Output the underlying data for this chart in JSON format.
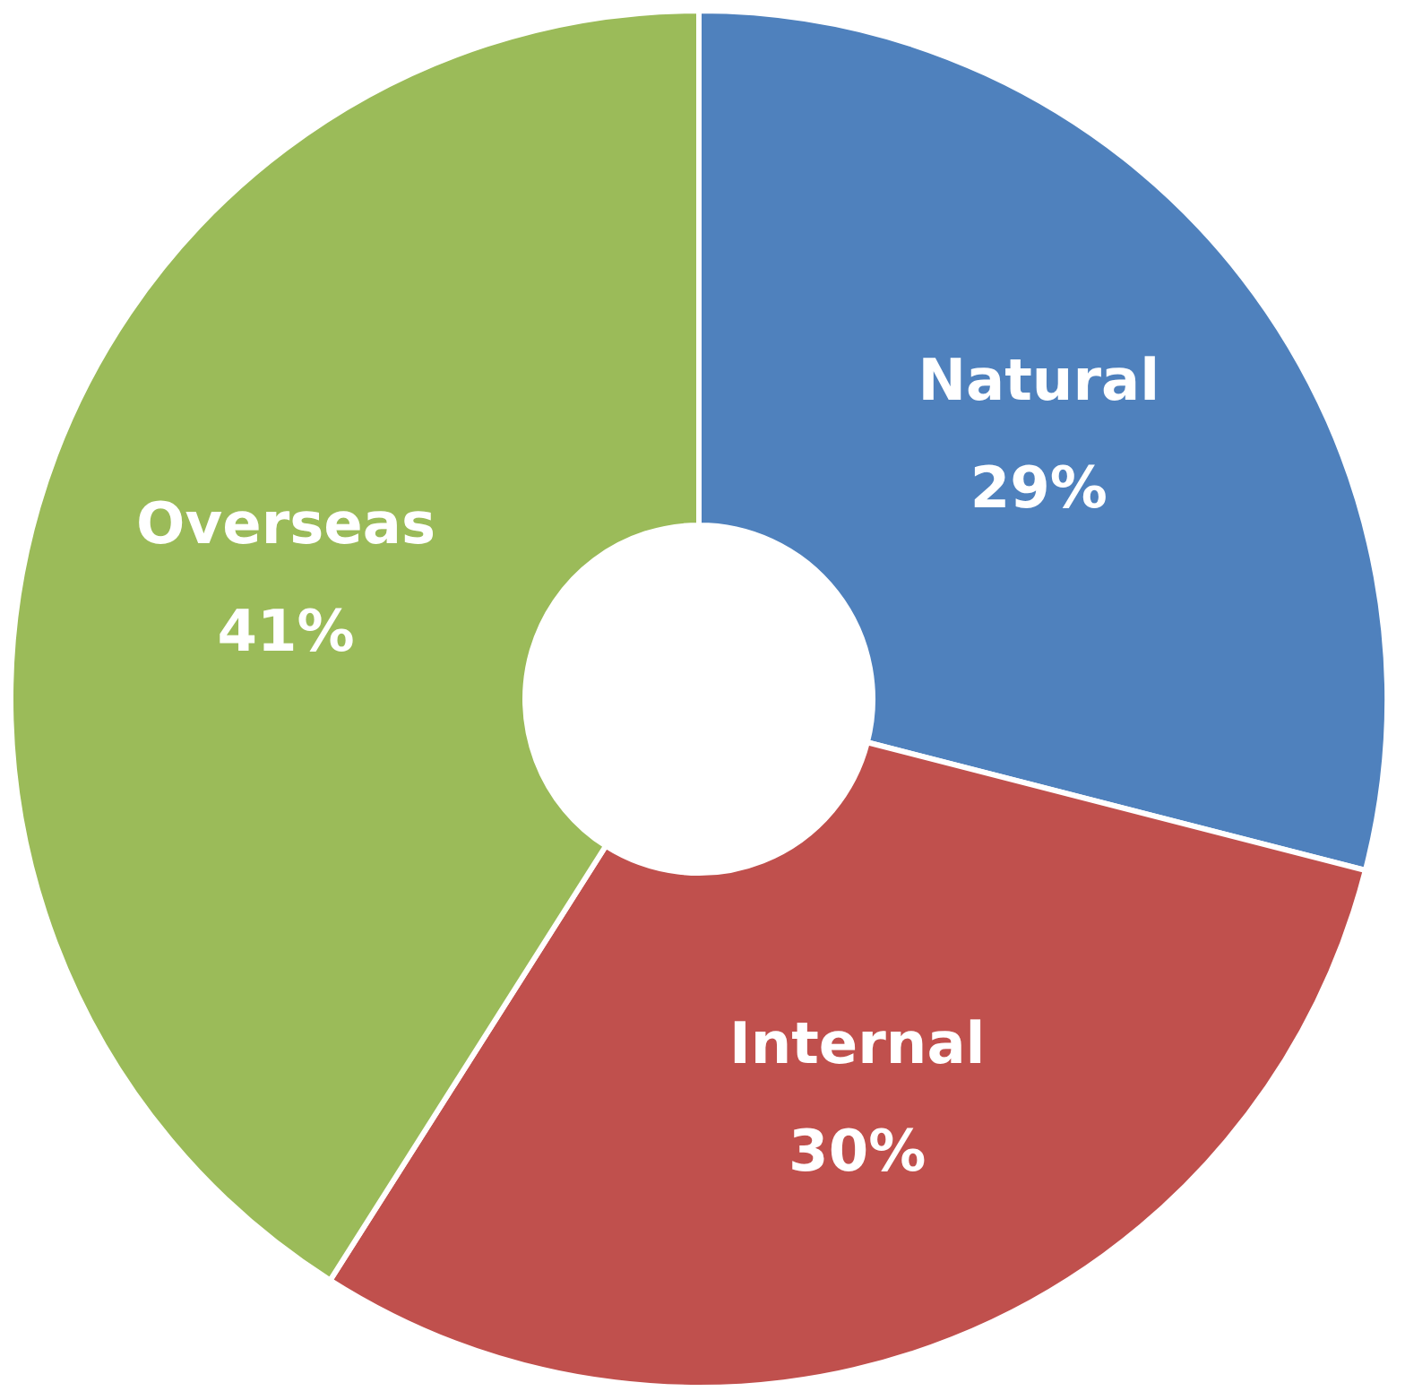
{
  "chart_data": {
    "type": "donut",
    "categories": [
      "Natural",
      "Internal",
      "Overseas"
    ],
    "values": [
      29,
      30,
      41
    ],
    "colors": [
      "#4f81bd",
      "#c0504d",
      "#9bbb59"
    ],
    "value_labels": [
      "29%",
      "30%",
      "41%"
    ]
  }
}
